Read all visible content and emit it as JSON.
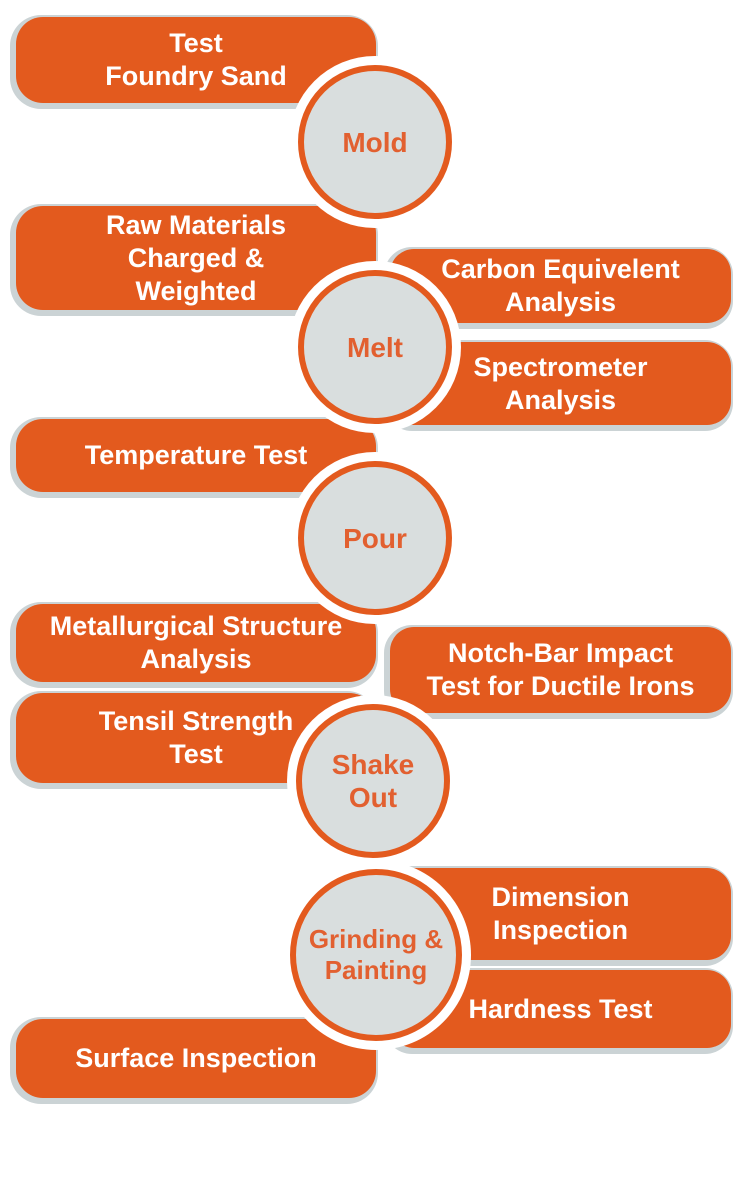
{
  "colors": {
    "box_orange": "#e35a1e",
    "box_text": "#ffffff",
    "circle_fill": "#d9dede",
    "circle_text": "#e26030",
    "shadow": "#cbd3d5",
    "background": "#ffffff"
  },
  "stages": [
    {
      "id": "mold",
      "label": "Mold",
      "lines": [
        "Mold"
      ]
    },
    {
      "id": "melt",
      "label": "Melt",
      "lines": [
        "Melt"
      ]
    },
    {
      "id": "pour",
      "label": "Pour",
      "lines": [
        "Pour"
      ]
    },
    {
      "id": "shake-out",
      "label": "Shake Out",
      "lines": [
        "Shake",
        "Out"
      ]
    },
    {
      "id": "grinding-painting",
      "label": "Grinding & Painting",
      "lines": [
        "Grinding &",
        "Painting"
      ]
    }
  ],
  "left_tests": [
    {
      "label": "Test Foundry Sand",
      "lines": [
        "Test",
        "Foundry Sand"
      ]
    },
    {
      "label": "Raw Materials Charged & Weighted",
      "lines": [
        "Raw Materials",
        "Charged &",
        "Weighted"
      ]
    },
    {
      "label": "Temperature Test",
      "lines": [
        "Temperature Test"
      ]
    },
    {
      "label": "Metallurgical Structure Analysis",
      "lines": [
        "Metallurgical Structure",
        "Analysis"
      ]
    },
    {
      "label": "Tensil Strength Test",
      "lines": [
        "Tensil Strength",
        "Test"
      ]
    },
    {
      "label": "Surface Inspection",
      "lines": [
        "Surface Inspection"
      ]
    }
  ],
  "right_tests": [
    {
      "label": "Carbon Equivelent Analysis",
      "lines": [
        "Carbon Equivelent",
        "Analysis"
      ]
    },
    {
      "label": "Spectrometer Analysis",
      "lines": [
        "Spectrometer",
        "Analysis"
      ]
    },
    {
      "label": "Notch-Bar Impact Test for Ductile Irons",
      "lines": [
        "Notch-Bar Impact",
        "Test for Ductile Irons"
      ]
    },
    {
      "label": "Dimension Inspection",
      "lines": [
        "Dimension",
        "Inspection"
      ]
    },
    {
      "label": "Hardness Test",
      "lines": [
        "Hardness Test"
      ]
    }
  ]
}
